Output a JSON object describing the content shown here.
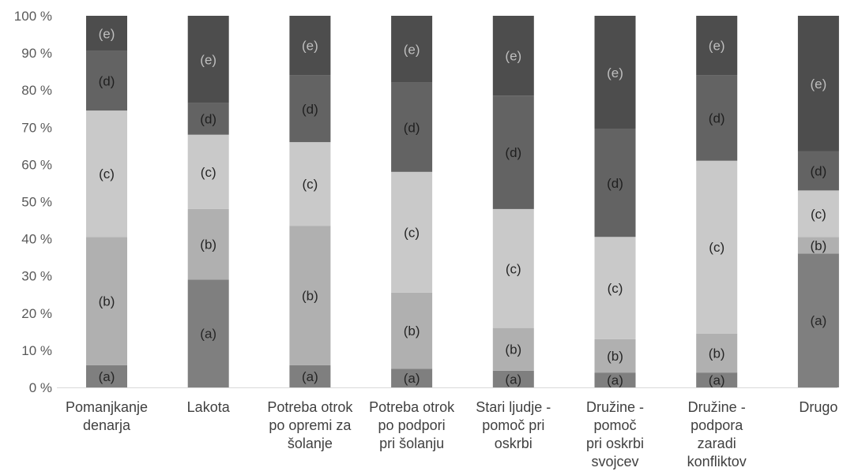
{
  "chart_data": {
    "type": "bar",
    "stacked": true,
    "percent": true,
    "ylim": [
      0,
      100
    ],
    "yticks": [
      "0 %",
      "10 %",
      "20 %",
      "30 %",
      "40 %",
      "50 %",
      "60 %",
      "70 %",
      "80 %",
      "90 %",
      "100 %"
    ],
    "categories": [
      [
        "Pomanjkanje",
        "denarja"
      ],
      [
        "Lakota"
      ],
      [
        "Potreba otrok",
        "po opremi za",
        "šolanje"
      ],
      [
        "Potreba otrok",
        "po podpori",
        "pri šolanju"
      ],
      [
        "Stari ljudje -",
        "pomoč pri",
        "oskrbi"
      ],
      [
        "Družine -",
        "pomoč",
        "pri oskrbi",
        "svojcev"
      ],
      [
        "Družine -",
        "podpora",
        "zaradi",
        "konfliktov"
      ],
      [
        "Drugo"
      ]
    ],
    "series": [
      {
        "name": "(a)",
        "color": "#7f7f7f",
        "label_color": "#262626",
        "values": [
          6,
          29,
          6,
          5,
          4.5,
          4,
          4,
          36
        ]
      },
      {
        "name": "(b)",
        "color": "#b0b0b0",
        "label_color": "#262626",
        "values": [
          34.5,
          19,
          37.5,
          20.5,
          11.5,
          9,
          10.5,
          4.5
        ]
      },
      {
        "name": "(c)",
        "color": "#c9c9c9",
        "label_color": "#262626",
        "values": [
          34,
          20,
          22.5,
          32.5,
          32,
          27.5,
          46.5,
          12.5
        ]
      },
      {
        "name": "(d)",
        "color": "#636363",
        "label_color": "#1f1f1f",
        "values": [
          16,
          8.5,
          18,
          24,
          30.5,
          29,
          23,
          10.5
        ]
      },
      {
        "name": "(e)",
        "color": "#4d4d4d",
        "label_color": "#bfbfbf",
        "values": [
          9.5,
          23.5,
          16,
          18,
          21.5,
          30.5,
          16,
          36.5
        ]
      }
    ],
    "grid": false,
    "legend": "none"
  }
}
